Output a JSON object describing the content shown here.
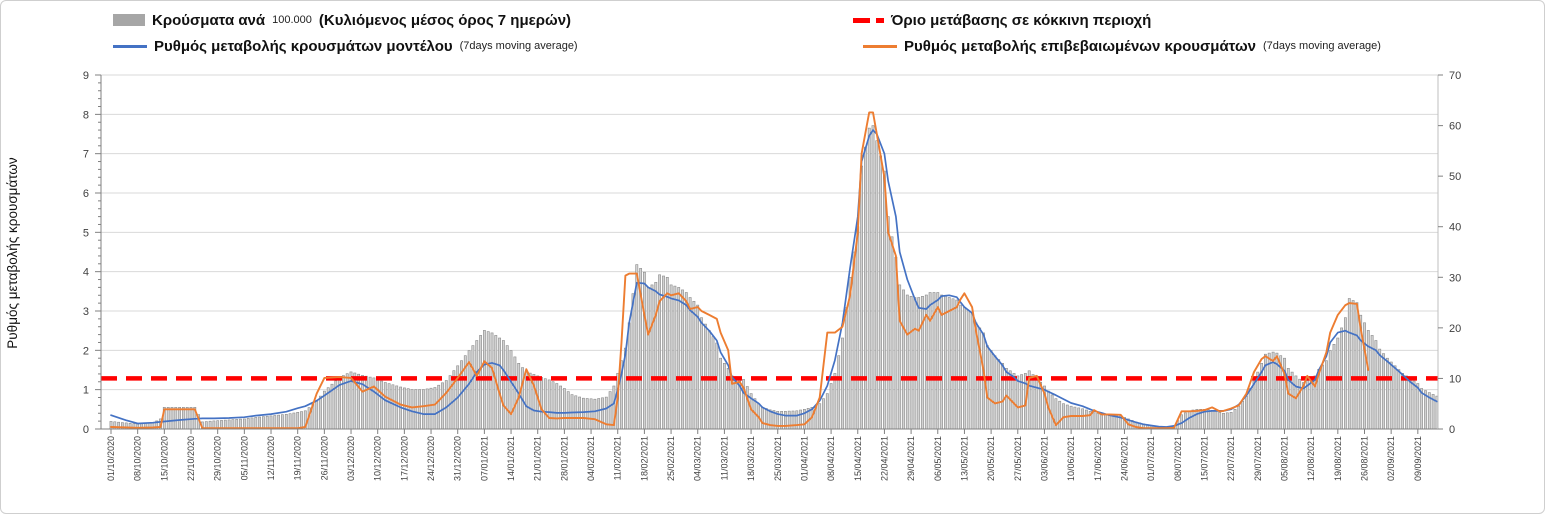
{
  "legend": {
    "cases_bars": {
      "label": "Κρούσματα ανά",
      "unit": "100.000",
      "suffix": "(Κυλιόμενος μέσος όρος 7 ημερών)",
      "color": "#a6a6a6"
    },
    "model_rate": {
      "label": "Ρυθμός μεταβολής κρουσμάτων μοντέλου",
      "note": "(7days moving average)",
      "color": "#4472c4"
    },
    "red_threshold": {
      "label": "Όριο μετάβασης σε κόκκινη περιοχή",
      "color": "#ff0000"
    },
    "confirmed_rate": {
      "label": "Ρυθμός μεταβολής επιβεβαιωμένων κρουσμάτων",
      "note": "(7days moving average)",
      "color": "#ed7d31"
    }
  },
  "y_axis_left": {
    "title": "Ρυθμός μεταβολής κρουσμάτων",
    "min": 0,
    "max": 9,
    "ticks": [
      0,
      1,
      2,
      3,
      4,
      5,
      6,
      7,
      8,
      9
    ]
  },
  "y_axis_right": {
    "min": 0,
    "max": 70,
    "ticks": [
      0,
      10,
      20,
      30,
      40,
      50,
      60,
      70
    ]
  },
  "chart_data": {
    "type": "combo (bar + line)",
    "title": "",
    "xlabel": "",
    "ylabel_left": "Ρυθμός μεταβολής κρουσμάτων",
    "grid": "horizontal, left-axis integers 1-9",
    "legend_position": "top, two columns",
    "x_label_every_days": 7,
    "x_labels": [
      "01/10/2020",
      "08/10/2020",
      "15/10/2020",
      "22/10/2020",
      "29/10/2020",
      "05/11/2020",
      "12/11/2020",
      "19/11/2020",
      "26/11/2020",
      "03/12/2020",
      "10/12/2020",
      "17/12/2020",
      "24/12/2020",
      "31/12/2020",
      "07/01/2021",
      "14/01/2021",
      "21/01/2021",
      "28/01/2021",
      "04/02/2021",
      "11/02/2021",
      "18/02/2021",
      "25/02/2021",
      "04/03/2021",
      "11/03/2021",
      "18/03/2021",
      "25/03/2021",
      "01/04/2021",
      "08/04/2021",
      "15/04/2021",
      "22/04/2021",
      "29/04/2021",
      "06/05/2021",
      "13/05/2021",
      "20/05/2021",
      "27/05/2021",
      "03/06/2021",
      "10/06/2021",
      "17/06/2021",
      "24/06/2021",
      "01/07/2021",
      "08/07/2021",
      "15/07/2021",
      "22/07/2021",
      "29/07/2021",
      "05/08/2021",
      "12/08/2021",
      "19/08/2021",
      "26/08/2021",
      "02/09/2021",
      "09/09/2021"
    ],
    "x_days": [
      0,
      4,
      7,
      11,
      13,
      14,
      18,
      22,
      24,
      27,
      31,
      35,
      38,
      42,
      46,
      49,
      51,
      54,
      56,
      60,
      63,
      66,
      69,
      72,
      76,
      79,
      82,
      85,
      88,
      91,
      94,
      96,
      98,
      100,
      102,
      103,
      105,
      107,
      109,
      111,
      113,
      115,
      117,
      119,
      121,
      124,
      127,
      130,
      132,
      133,
      134,
      135,
      136,
      138,
      140,
      141,
      143,
      144,
      146,
      147,
      149,
      151,
      152,
      154,
      155,
      157,
      159,
      160,
      162,
      163,
      165,
      166,
      168,
      170,
      171,
      173,
      175,
      177,
      180,
      182,
      184,
      186,
      188,
      190,
      192,
      194,
      196,
      197,
      199,
      200,
      201,
      203,
      204,
      206,
      207,
      209,
      211,
      212,
      214,
      215,
      217,
      218,
      220,
      222,
      223,
      224,
      226,
      227,
      229,
      230,
      232,
      234,
      235,
      237,
      238,
      240,
      241,
      243,
      245,
      246,
      248,
      250,
      252,
      255,
      257,
      258,
      260,
      262,
      265,
      267,
      269,
      271,
      273,
      275,
      277,
      279,
      281,
      283,
      285,
      287,
      289,
      291,
      292,
      294,
      296,
      298,
      300,
      302,
      303,
      305,
      306,
      308,
      309,
      311,
      313,
      314,
      316,
      317,
      319,
      320,
      322,
      324,
      325,
      327,
      328,
      330,
      332,
      333,
      335,
      337,
      339,
      341,
      343,
      344,
      346,
      348
    ],
    "threshold": {
      "axis": "right",
      "value": 10,
      "left_axis_equivalent": 1.29,
      "color": "#ff0000",
      "style": "dashed"
    },
    "series": [
      {
        "name": "Κρούσματα ανά 100.000 (Κυλιόμενος μέσος όρος 7 ημερών)",
        "type": "bar",
        "axis": "right",
        "fill": "#d2d2d2",
        "stroke": "#8a8a8a",
        "values": [
          1.5,
          1.2,
          1.0,
          1.2,
          2.0,
          4.3,
          4.3,
          4.3,
          1.4,
          1.6,
          1.8,
          2.0,
          2.3,
          2.6,
          2.9,
          3.3,
          3.6,
          5.5,
          7.5,
          10.2,
          11.3,
          10.6,
          10.1,
          9.2,
          8.3,
          7.8,
          7.8,
          8.2,
          9.6,
          12.5,
          15.5,
          17.5,
          19.5,
          19.0,
          18.0,
          17.5,
          15.5,
          13.0,
          11.3,
          10.8,
          10.2,
          9.7,
          9.0,
          8.0,
          6.8,
          6.1,
          5.9,
          6.3,
          8.5,
          11.0,
          13.5,
          16.0,
          21.0,
          32.5,
          31.0,
          28.0,
          29.0,
          30.5,
          30.0,
          28.5,
          28.0,
          27.0,
          26.0,
          24.5,
          22.0,
          19.5,
          17.0,
          14.0,
          12.0,
          10.5,
          10.2,
          9.8,
          7.0,
          5.0,
          4.3,
          3.8,
          3.5,
          3.5,
          3.6,
          3.9,
          4.3,
          5.0,
          7.0,
          11.0,
          18.0,
          30.0,
          40.0,
          52.0,
          59.5,
          60.0,
          57.0,
          51.0,
          42.0,
          34.0,
          28.5,
          26.5,
          26.0,
          26.0,
          26.5,
          27.0,
          27.0,
          26.5,
          26.0,
          25.5,
          24.5,
          24.0,
          23.0,
          21.0,
          19.0,
          16.5,
          14.5,
          13.0,
          12.0,
          11.0,
          10.5,
          11.0,
          11.5,
          10.0,
          8.5,
          7.5,
          6.0,
          5.0,
          4.5,
          4.0,
          3.5,
          3.2,
          3.0,
          2.8,
          2.6,
          2.0,
          1.4,
          1.0,
          0.7,
          0.5,
          0.4,
          0.5,
          2.8,
          3.6,
          3.9,
          3.9,
          3.7,
          3.3,
          3.1,
          3.3,
          4.5,
          6.5,
          9.5,
          13.0,
          14.8,
          15.2,
          15.0,
          14.0,
          12.0,
          10.5,
          9.2,
          9.6,
          10.5,
          11.8,
          13.5,
          15.5,
          18.0,
          22.0,
          25.8,
          25.0,
          22.5,
          19.5,
          17.5,
          15.8,
          14.0,
          12.5,
          11.0,
          10.0,
          9.0,
          8.0,
          7.2,
          6.5
        ]
      },
      {
        "name": "Ρυθμός μεταβολής κρουσμάτων μοντέλου (7days moving average)",
        "type": "line",
        "axis": "left",
        "color": "#4472c4",
        "values": [
          0.35,
          0.22,
          0.14,
          0.16,
          0.18,
          0.19,
          0.23,
          0.26,
          0.27,
          0.27,
          0.28,
          0.3,
          0.34,
          0.38,
          0.44,
          0.53,
          0.58,
          0.72,
          0.85,
          1.12,
          1.22,
          1.14,
          0.95,
          0.73,
          0.55,
          0.45,
          0.38,
          0.38,
          0.55,
          0.8,
          1.15,
          1.45,
          1.64,
          1.68,
          1.62,
          1.5,
          1.2,
          0.9,
          0.58,
          0.47,
          0.44,
          0.43,
          0.41,
          0.41,
          0.42,
          0.43,
          0.45,
          0.52,
          0.65,
          1.0,
          1.4,
          1.9,
          2.7,
          3.72,
          3.7,
          3.6,
          3.5,
          3.42,
          3.36,
          3.32,
          3.27,
          3.15,
          3.02,
          2.85,
          2.7,
          2.5,
          2.25,
          1.95,
          1.62,
          1.32,
          1.1,
          0.92,
          0.78,
          0.65,
          0.55,
          0.45,
          0.38,
          0.34,
          0.34,
          0.4,
          0.5,
          0.72,
          1.1,
          1.75,
          2.7,
          4.1,
          5.4,
          6.8,
          7.45,
          7.6,
          7.5,
          7.0,
          6.3,
          5.4,
          4.5,
          3.8,
          3.3,
          3.08,
          3.05,
          3.15,
          3.28,
          3.38,
          3.4,
          3.35,
          3.22,
          3.1,
          2.95,
          2.7,
          2.4,
          2.1,
          1.85,
          1.62,
          1.45,
          1.32,
          1.22,
          1.16,
          1.1,
          1.05,
          1.0,
          0.95,
          0.86,
          0.76,
          0.66,
          0.58,
          0.5,
          0.46,
          0.41,
          0.35,
          0.29,
          0.23,
          0.17,
          0.12,
          0.09,
          0.06,
          0.05,
          0.08,
          0.15,
          0.28,
          0.38,
          0.44,
          0.46,
          0.46,
          0.46,
          0.5,
          0.62,
          0.85,
          1.15,
          1.45,
          1.62,
          1.7,
          1.65,
          1.48,
          1.25,
          1.08,
          1.03,
          1.1,
          1.25,
          1.5,
          1.85,
          2.2,
          2.45,
          2.5,
          2.45,
          2.38,
          2.25,
          2.1,
          2.0,
          1.88,
          1.72,
          1.55,
          1.38,
          1.2,
          1.05,
          0.92,
          0.8,
          0.7
        ]
      },
      {
        "name": "Ρυθμός μεταβολής επιβεβαιωμένων κρουσμάτων (7days moving average)",
        "type": "line",
        "axis": "left",
        "color": "#ed7d31",
        "values": [
          0.05,
          0.04,
          0.03,
          0.04,
          0.05,
          0.5,
          0.5,
          0.5,
          0.02,
          0.02,
          0.02,
          0.02,
          0.02,
          0.02,
          0.02,
          0.02,
          0.05,
          0.9,
          1.3,
          1.32,
          1.3,
          0.95,
          1.08,
          0.82,
          0.62,
          0.55,
          0.58,
          0.62,
          0.92,
          1.3,
          1.7,
          1.35,
          1.72,
          1.55,
          0.9,
          0.6,
          0.38,
          0.8,
          1.52,
          1.1,
          0.5,
          0.28,
          0.27,
          0.28,
          0.28,
          0.28,
          0.25,
          0.12,
          0.1,
          0.8,
          2.2,
          3.9,
          3.95,
          3.95,
          2.9,
          2.4,
          2.9,
          3.25,
          3.45,
          3.4,
          3.45,
          3.25,
          3.05,
          3.1,
          3.0,
          2.9,
          2.8,
          2.45,
          2.0,
          1.15,
          1.2,
          1.05,
          0.5,
          0.3,
          0.15,
          0.1,
          0.08,
          0.08,
          0.1,
          0.12,
          0.3,
          0.8,
          2.45,
          2.45,
          2.6,
          3.4,
          5.0,
          7.0,
          8.05,
          8.05,
          7.5,
          6.4,
          5.0,
          4.4,
          2.75,
          2.4,
          2.55,
          2.5,
          2.9,
          2.75,
          3.1,
          2.9,
          3.0,
          3.1,
          3.3,
          3.45,
          3.1,
          2.5,
          1.5,
          0.8,
          0.65,
          0.7,
          0.85,
          0.65,
          0.55,
          0.6,
          1.3,
          1.35,
          0.9,
          0.55,
          0.1,
          0.3,
          0.33,
          0.33,
          0.35,
          0.48,
          0.37,
          0.37,
          0.36,
          0.12,
          0.05,
          0.02,
          0.02,
          0.02,
          0.02,
          0.03,
          0.45,
          0.45,
          0.46,
          0.48,
          0.55,
          0.45,
          0.46,
          0.52,
          0.6,
          0.9,
          1.45,
          1.78,
          1.85,
          1.73,
          1.85,
          1.4,
          0.9,
          0.78,
          1.1,
          1.35,
          1.08,
          1.4,
          1.95,
          2.45,
          2.9,
          3.15,
          3.2,
          3.18,
          2.55,
          1.5,
          null,
          null,
          null,
          null,
          null,
          null,
          null,
          null,
          null,
          null
        ]
      }
    ]
  }
}
